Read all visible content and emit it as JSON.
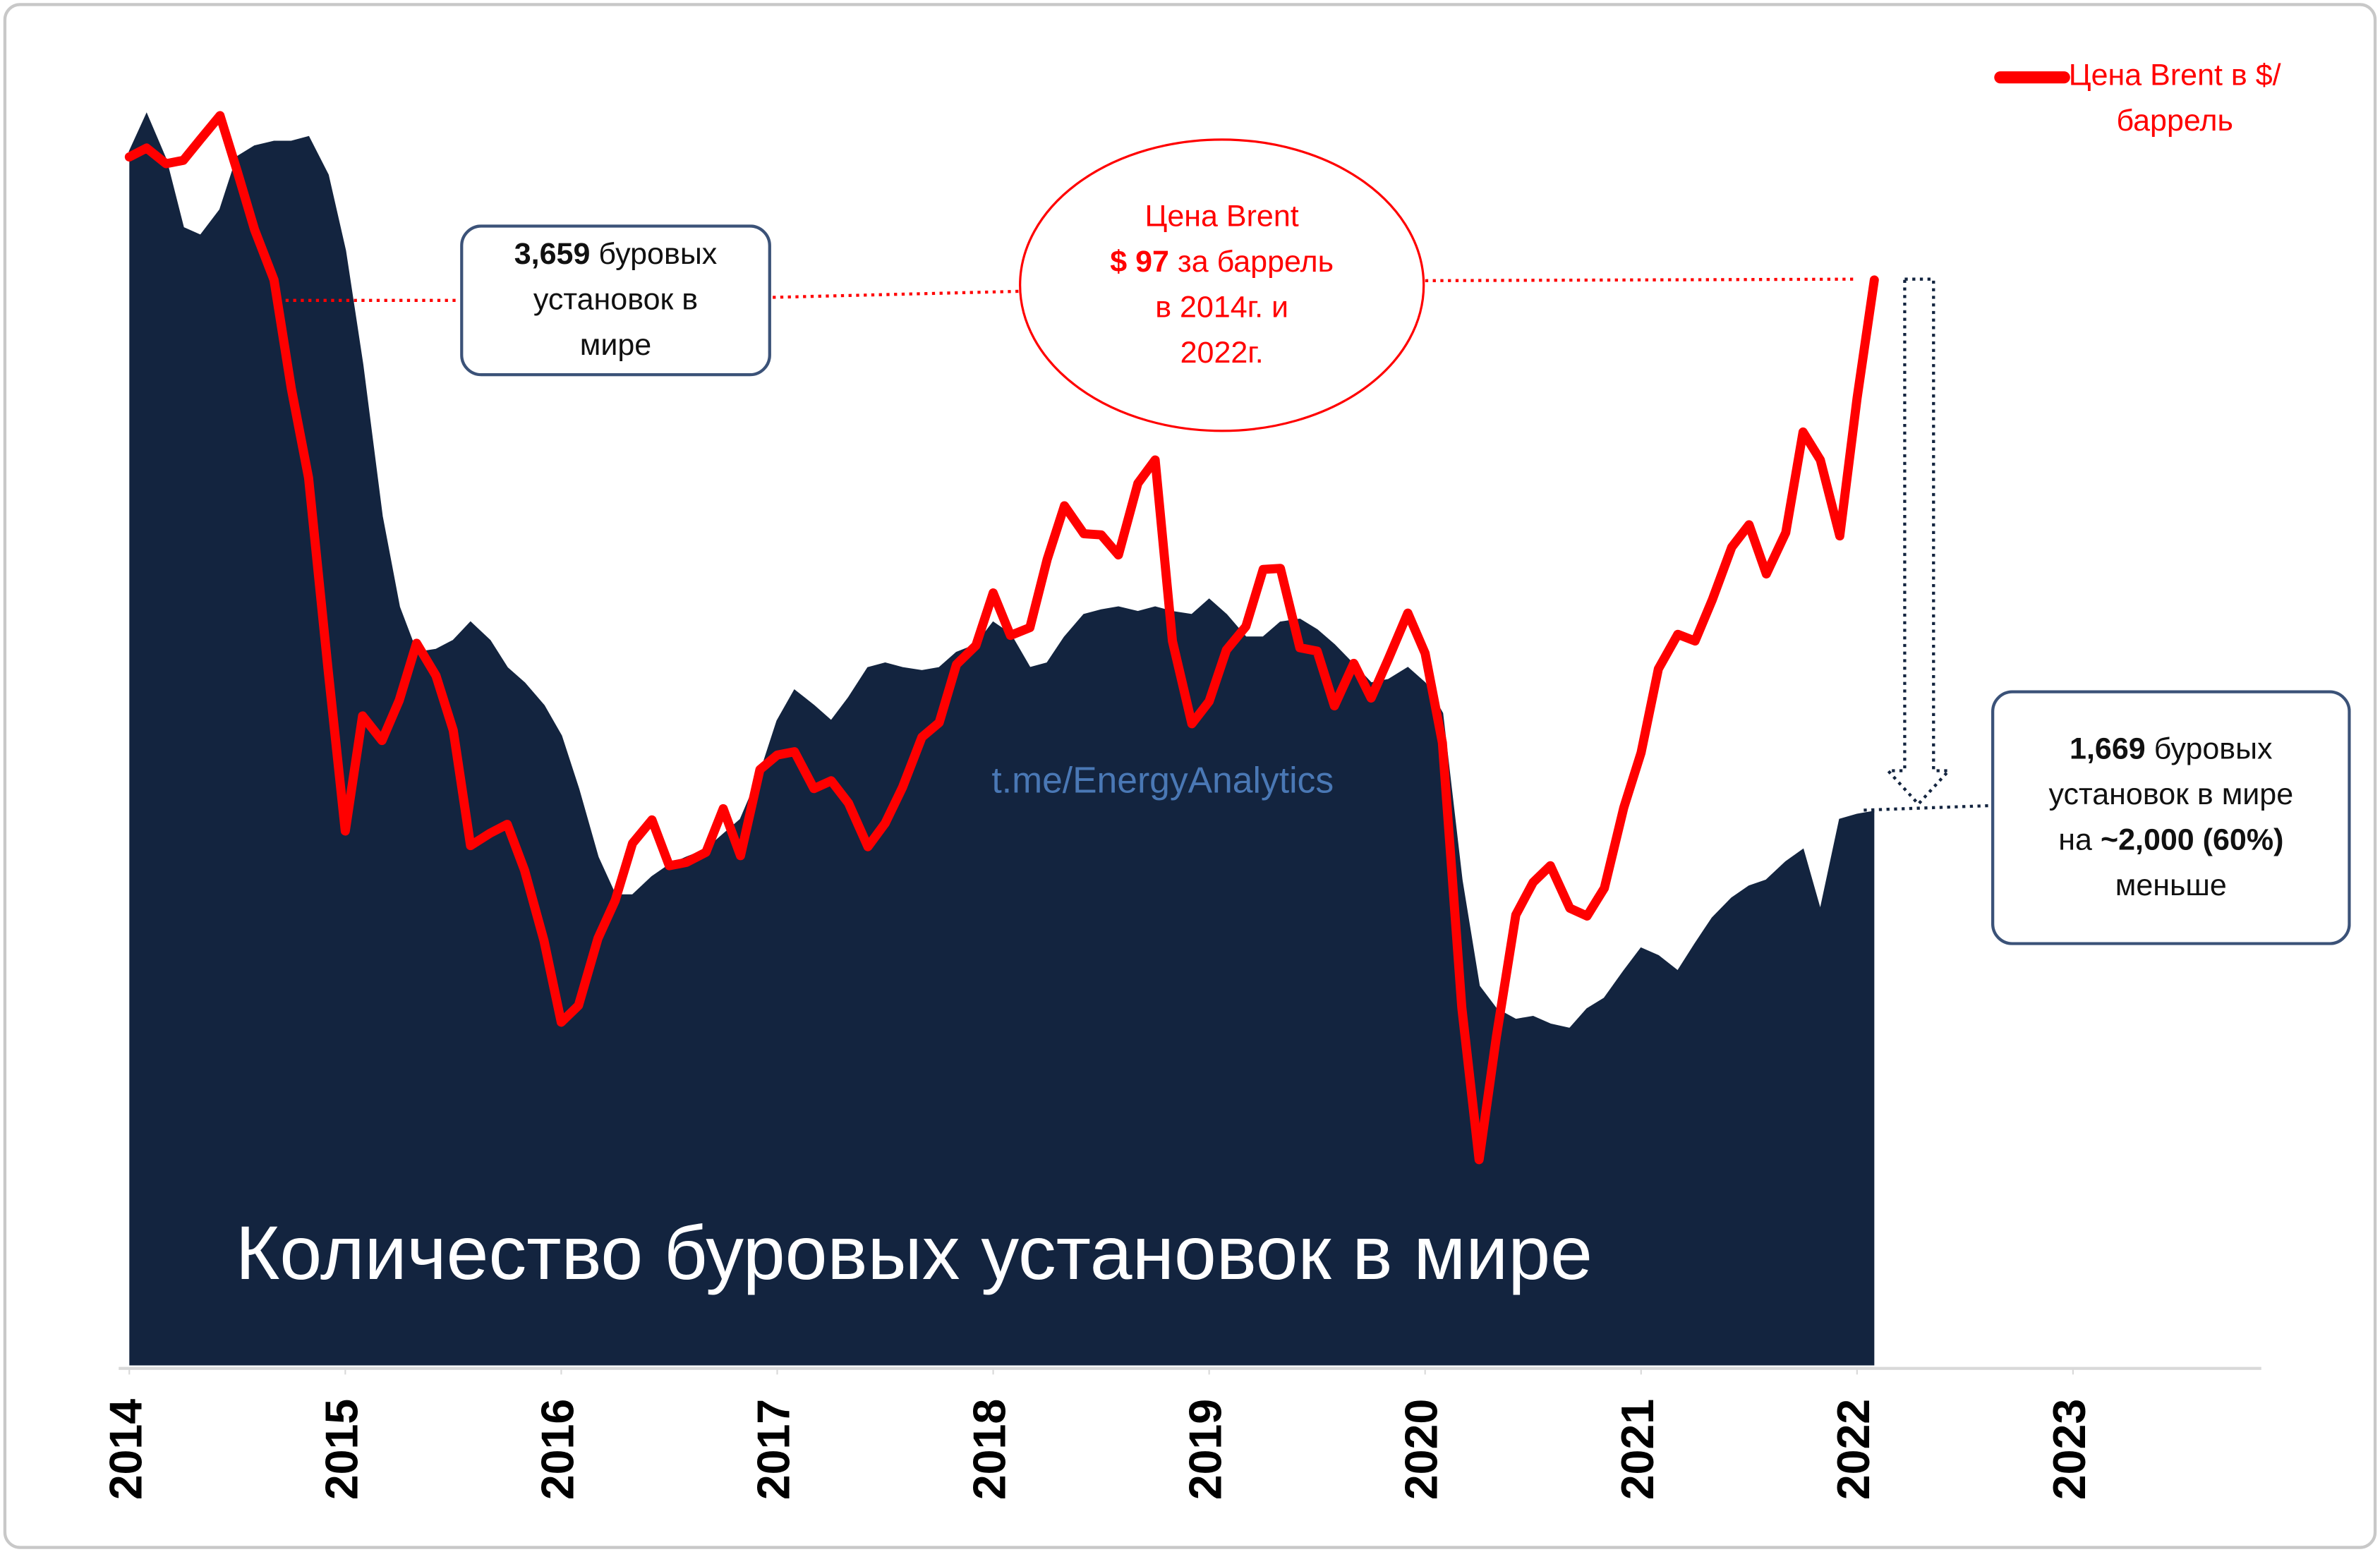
{
  "chart_data": {
    "type": "area",
    "x": [
      2014,
      2014.08,
      2014.17,
      2014.25,
      2014.33,
      2014.42,
      2014.5,
      2014.58,
      2014.67,
      2014.75,
      2014.83,
      2014.92,
      2015,
      2015.08,
      2015.17,
      2015.25,
      2015.33,
      2015.42,
      2015.5,
      2015.58,
      2015.67,
      2015.75,
      2015.83,
      2015.92,
      2016,
      2016.08,
      2016.17,
      2016.25,
      2016.33,
      2016.42,
      2016.5,
      2016.58,
      2016.67,
      2016.75,
      2016.83,
      2016.92,
      2017,
      2017.08,
      2017.17,
      2017.25,
      2017.33,
      2017.42,
      2017.5,
      2017.58,
      2017.67,
      2017.75,
      2017.83,
      2017.92,
      2018,
      2018.08,
      2018.17,
      2018.25,
      2018.33,
      2018.42,
      2018.5,
      2018.58,
      2018.67,
      2018.75,
      2018.83,
      2018.92,
      2019,
      2019.08,
      2019.17,
      2019.25,
      2019.33,
      2019.42,
      2019.5,
      2019.58,
      2019.67,
      2019.75,
      2019.83,
      2019.92,
      2020,
      2020.08,
      2020.17,
      2020.25,
      2020.33,
      2020.42,
      2020.5,
      2020.58,
      2020.67,
      2020.75,
      2020.83,
      2020.92,
      2021,
      2021.08,
      2021.17,
      2021.25,
      2021.33,
      2021.42,
      2021.5,
      2021.58,
      2021.67,
      2021.75,
      2021.83,
      2021.92,
      2022,
      2022.08
    ],
    "xlim": [
      2014,
      2023.9
    ],
    "xticks": [
      2014,
      2015,
      2016,
      2017,
      2018,
      2019,
      2020,
      2021,
      2022,
      2023
    ],
    "ylim": [
      0,
      3840
    ],
    "y2lim": [
      0,
      114
    ],
    "legend": "top-right",
    "series": [
      {
        "name": "Количество буровых установок в мире",
        "type": "area",
        "color": "#13243f",
        "values": [
          3656,
          3770,
          3633,
          3428,
          3405,
          3482,
          3642,
          3674,
          3688,
          3688,
          3702,
          3587,
          3359,
          3016,
          2559,
          2285,
          2148,
          2157,
          2184,
          2239,
          2184,
          2102,
          2056,
          1988,
          1897,
          1737,
          1531,
          1417,
          1417,
          1472,
          1508,
          1531,
          1554,
          1600,
          1645,
          1782,
          1942,
          2034,
          1988,
          1942,
          2011,
          2102,
          2116,
          2102,
          2093,
          2102,
          2148,
          2171,
          2239,
          2203,
          2102,
          2116,
          2194,
          2262,
          2276,
          2285,
          2271,
          2285,
          2271,
          2262,
          2308,
          2262,
          2194,
          2194,
          2239,
          2248,
          2216,
          2171,
          2111,
          2056,
          2066,
          2102,
          2056,
          1965,
          1462,
          1143,
          1074,
          1042,
          1051,
          1028,
          1015,
          1074,
          1106,
          1188,
          1257,
          1234,
          1188,
          1270,
          1348,
          1408,
          1444,
          1462,
          1517,
          1554,
          1371,
          1645,
          1660,
          1669
        ]
      },
      {
        "name": "Цена Brent в $/баррель",
        "type": "line",
        "axis": "y2",
        "color": "#ff0000",
        "values": [
          108.1,
          108.9,
          107.5,
          107.8,
          109.7,
          111.8,
          106.8,
          101.6,
          97.1,
          87.4,
          79.4,
          62.3,
          47.8,
          58.1,
          55.9,
          59.5,
          64.6,
          61.7,
          56.8,
          46.5,
          47.6,
          48.4,
          44.3,
          38.0,
          30.7,
          32.2,
          38.2,
          41.6,
          46.7,
          48.8,
          44.7,
          45.0,
          45.9,
          49.8,
          45.6,
          53.3,
          54.6,
          54.9,
          51.6,
          52.3,
          50.3,
          46.4,
          48.5,
          51.7,
          56.2,
          57.5,
          62.7,
          64.4,
          69.1,
          65.3,
          66.0,
          72.1,
          76.9,
          74.4,
          74.3,
          72.5,
          78.9,
          81.0,
          64.8,
          57.4,
          59.4,
          64.0,
          66.1,
          71.2,
          71.3,
          64.2,
          63.9,
          59.0,
          62.8,
          59.7,
          63.2,
          67.3,
          63.7,
          55.7,
          32.0,
          18.4,
          29.4,
          40.3,
          43.2,
          44.7,
          40.9,
          40.2,
          42.7,
          49.9,
          54.8,
          62.3,
          65.4,
          64.8,
          68.5,
          73.2,
          75.2,
          70.8,
          74.5,
          83.5,
          81.0,
          74.2,
          86.5,
          97.1
        ]
      }
    ],
    "annotations": [
      {
        "lines": [
          {
            "bold": "3,659",
            "text": "буровых"
          },
          {
            "text": "установок в"
          },
          {
            "text": "мире"
          }
        ]
      },
      {
        "lines": [
          {
            "text": "Цена Brent"
          },
          {
            "bold": "$ 97",
            "text": "за баррель"
          },
          {
            "text": "в 2014г. и"
          },
          {
            "text": "2022г."
          }
        ]
      },
      {
        "lines": [
          {
            "bold": "1,669",
            "text": "буровых"
          },
          {
            "text": "установок в мире"
          },
          {
            "text": "на",
            "bold": "~2,000 (60%)"
          },
          {
            "text": "меньше"
          }
        ]
      }
    ],
    "watermark": "t.me/EnergyAnalytics"
  }
}
